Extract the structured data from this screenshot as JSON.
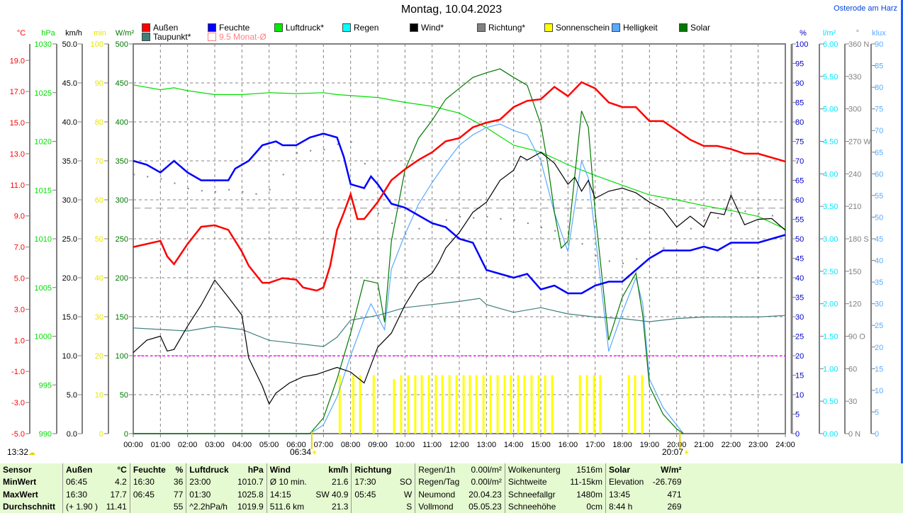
{
  "header": {
    "title": "Montag, 10.04.2023",
    "station": "Osterode am Harz"
  },
  "legend": [
    {
      "label": "Außen",
      "color": "#ff0000"
    },
    {
      "label": "Feuchte",
      "color": "#0000ff"
    },
    {
      "label": "Luftdruck*",
      "color": "#00ee00"
    },
    {
      "label": "Regen",
      "color": "#00ffff"
    },
    {
      "label": "Wind*",
      "color": "#000000"
    },
    {
      "label": "Richtung*",
      "color": "#808080"
    },
    {
      "label": "Sonnenschein",
      "color": "#ffff00"
    },
    {
      "label": "Helligkeit",
      "color": "#5aaaff"
    },
    {
      "label": "Solar",
      "color": "#007700"
    },
    {
      "label": "Taupunkt*",
      "color": "#3f7f7a"
    },
    {
      "label": "9.5 Monat-Ø",
      "color": "#ff8080"
    }
  ],
  "markers": {
    "now": "13:32",
    "sunrise": "06:34",
    "sunset": "20:07"
  },
  "chart_data": {
    "type": "line",
    "title": "Montag, 10.04.2023",
    "x_unit": "hour",
    "xlim": [
      0,
      24
    ],
    "x_ticks": [
      "00:00",
      "01:00",
      "02:00",
      "03:00",
      "04:00",
      "05:00",
      "06:00",
      "07:00",
      "08:00",
      "09:00",
      "10:00",
      "11:00",
      "12:00",
      "13:00",
      "14:00",
      "15:00",
      "16:00",
      "17:00",
      "18:00",
      "19:00",
      "20:00",
      "21:00",
      "22:00",
      "23:00",
      "24:00"
    ],
    "axes": {
      "temp": {
        "unit": "°C",
        "ylim": [
          -5,
          20.06
        ],
        "color": "#ff0000",
        "ticks": [
          "19.0",
          "17.0",
          "15.0",
          "13.0",
          "11.0",
          "9.0",
          "7.0",
          "5.0",
          "3.0",
          "1.0",
          "-1.0",
          "-3.0",
          "-5.0"
        ]
      },
      "press": {
        "unit": "hPa",
        "ylim": [
          990,
          1030
        ],
        "color": "#00dd00",
        "ticks": [
          "1030",
          "1025",
          "1020",
          "1015",
          "1010",
          "1005",
          "1000",
          "995",
          "990"
        ]
      },
      "wind": {
        "unit": "km/h",
        "ylim": [
          0,
          50
        ],
        "color": "#000000",
        "ticks": [
          "50.0",
          "45.0",
          "40.0",
          "35.0",
          "30.0",
          "25.0",
          "20.0",
          "15.0",
          "10.0",
          "5.0",
          "0.0"
        ]
      },
      "sun": {
        "unit": "min",
        "ylim": [
          0,
          100
        ],
        "color": "#e6e600",
        "ticks": [
          "100",
          "90",
          "80",
          "70",
          "60",
          "50",
          "40",
          "30",
          "20",
          "10",
          "0"
        ]
      },
      "solar": {
        "unit": "W/m²",
        "ylim": [
          0,
          500
        ],
        "color": "#007700",
        "ticks": [
          "500",
          "450",
          "400",
          "350",
          "300",
          "250",
          "200",
          "150",
          "100",
          "50",
          "0"
        ]
      },
      "hum": {
        "unit": "%",
        "ylim": [
          0,
          100
        ],
        "color": "#0000cc",
        "ticks": [
          "100",
          "95",
          "90",
          "85",
          "80",
          "75",
          "70",
          "65",
          "60",
          "55",
          "50",
          "45",
          "40",
          "35",
          "30",
          "25",
          "20",
          "15",
          "10",
          "5",
          "0"
        ]
      },
      "rain": {
        "unit": "l/m²",
        "ylim": [
          0,
          6
        ],
        "color": "#00e5ff",
        "ticks": [
          "6.00",
          "5.50",
          "5.00",
          "4.50",
          "4.00",
          "3.50",
          "3.00",
          "2.50",
          "2.00",
          "1.50",
          "1.00",
          "0.50",
          "0.00"
        ]
      },
      "dir": {
        "unit": "°",
        "ylim": [
          0,
          360
        ],
        "color": "#808080",
        "ticks": [
          "360 N",
          "330",
          "300",
          "270 W",
          "240",
          "210",
          "180 S",
          "150",
          "120",
          "90 O",
          "60",
          "30",
          "0 N"
        ]
      },
      "lux": {
        "unit": "klux",
        "ylim": [
          0,
          90
        ],
        "color": "#5aaaff",
        "ticks": [
          "90",
          "85",
          "80",
          "75",
          "70",
          "65",
          "60",
          "55",
          "50",
          "45",
          "40",
          "35",
          "30",
          "25",
          "20",
          "15",
          "10",
          "5",
          "0"
        ]
      }
    },
    "reference_lines": [
      {
        "name": "9.5 Monat-Ø",
        "axis": "temp",
        "value": 9.5,
        "color": "#909090"
      },
      {
        "name": "0 °C",
        "axis": "temp",
        "value": 0,
        "color": "#ff00ff"
      }
    ],
    "series": [
      {
        "name": "Taupunkt*",
        "axis": "temp",
        "color": "#3f7f7a",
        "x": [
          0,
          1,
          2,
          3,
          4,
          5,
          6,
          7,
          7.5,
          8,
          9,
          10,
          11,
          12,
          12.75,
          13,
          14,
          15,
          16,
          17,
          18,
          19,
          20,
          21,
          22,
          23,
          24
        ],
        "y": [
          1.8,
          1.7,
          1.6,
          1.9,
          1.7,
          1.0,
          0.8,
          0.6,
          1.2,
          2.3,
          2.6,
          3.1,
          3.3,
          3.5,
          3.7,
          3.3,
          2.8,
          3.1,
          2.7,
          2.5,
          2.4,
          2.2,
          2.4,
          2.5,
          2.5,
          2.5,
          2.6
        ]
      },
      {
        "name": "Luftdruck*",
        "axis": "press",
        "color": "#00dd00",
        "x": [
          0,
          1,
          1.5,
          2,
          3,
          4,
          5,
          6,
          7,
          7.5,
          8,
          9,
          10,
          11,
          12,
          13,
          14,
          15,
          16,
          17,
          18,
          19,
          20,
          21,
          22,
          23,
          24
        ],
        "y": [
          1025.8,
          1025.3,
          1025.5,
          1025.2,
          1024.8,
          1024.8,
          1025.0,
          1024.9,
          1025.0,
          1024.8,
          1024.7,
          1024.5,
          1024.0,
          1023.6,
          1022.9,
          1021.4,
          1019.6,
          1018.9,
          1017.6,
          1016.5,
          1015.5,
          1014.5,
          1014.0,
          1013.4,
          1012.9,
          1012.3,
          1011.0
        ]
      },
      {
        "name": "Helligkeit",
        "axis": "lux",
        "color": "#5aaaff",
        "x": [
          0,
          6.5,
          7,
          7.5,
          8,
          8.5,
          8.75,
          9.25,
          9.5,
          10,
          10.5,
          11,
          11.5,
          12,
          12.5,
          13,
          13.5,
          14,
          14.5,
          15,
          15.5,
          16,
          16.5,
          16.75,
          17,
          17.5,
          18,
          18.5,
          18.75,
          19,
          19.5,
          20,
          20.25
        ],
        "y": [
          0,
          0,
          2,
          8.5,
          18,
          26.5,
          30,
          24,
          38,
          46,
          53,
          58,
          62.5,
          66.6,
          69,
          70.7,
          71.5,
          70,
          69,
          63,
          51,
          42,
          63,
          59,
          46,
          19,
          28,
          36,
          30,
          12.6,
          6,
          2,
          0
        ]
      },
      {
        "name": "Solar",
        "axis": "solar",
        "color": "#007700",
        "x": [
          0,
          6.5,
          7,
          7.5,
          8,
          8.5,
          9,
          9.25,
          9.5,
          10,
          10.5,
          11,
          11.5,
          12,
          12.5,
          13,
          13.5,
          14,
          14.5,
          15,
          15.25,
          15.5,
          15.75,
          16,
          16.5,
          16.75,
          17,
          17.5,
          18,
          18.5,
          18.75,
          19,
          19.5,
          20,
          20.25
        ],
        "y": [
          0,
          0,
          20,
          70,
          129,
          197,
          193,
          143,
          247,
          338,
          379,
          402,
          429,
          443,
          457,
          463,
          468,
          457,
          447,
          397,
          347,
          284,
          238,
          247,
          414,
          393,
          284,
          120,
          175,
          206,
          152,
          61,
          25,
          6,
          0
        ]
      },
      {
        "name": "Wind*",
        "axis": "wind",
        "color": "#000000",
        "x": [
          0,
          0.5,
          1,
          1.25,
          1.5,
          2,
          2.5,
          3,
          3.5,
          4,
          4.25,
          4.75,
          5,
          5.25,
          5.75,
          6.25,
          6.75,
          7,
          7.5,
          8,
          8.5,
          9,
          9.5,
          10,
          10.5,
          11,
          11.25,
          11.5,
          12,
          12.5,
          13,
          13.5,
          14,
          14.25,
          14.5,
          15,
          15.5,
          16,
          16.25,
          16.5,
          16.75,
          17,
          17.5,
          18,
          18.5,
          19,
          19.5,
          20,
          20.5,
          21,
          21.25,
          21.75,
          22,
          22.5,
          23,
          23.5,
          24
        ],
        "y": [
          10.4,
          12,
          12.5,
          10.6,
          10.8,
          13.8,
          16.5,
          19.7,
          17.5,
          15.2,
          9.7,
          6.1,
          3.8,
          5.2,
          6.5,
          7.3,
          7.6,
          7.9,
          8.5,
          7.9,
          6.5,
          11.1,
          12.9,
          16.5,
          19.3,
          20.6,
          22,
          23.8,
          25.8,
          28.4,
          29.7,
          32.5,
          33.8,
          35.6,
          35.1,
          36.1,
          34.7,
          32,
          32.9,
          31.1,
          32.5,
          30.2,
          31.1,
          31.5,
          30.9,
          29.7,
          28.8,
          26.5,
          27.9,
          26.5,
          28.4,
          28.1,
          30.6,
          26.8,
          27.5,
          27.6,
          26.1
        ]
      },
      {
        "name": "Feuchte",
        "axis": "hum",
        "color": "#0000ff",
        "x": [
          0,
          0.5,
          1,
          1.5,
          2,
          2.5,
          3.5,
          3.75,
          4.25,
          4.75,
          5.25,
          5.5,
          6,
          6.5,
          7,
          7.5,
          7.75,
          8,
          8.5,
          8.75,
          9,
          9.5,
          10,
          10.5,
          11,
          11.5,
          12,
          12.5,
          13,
          13.5,
          14,
          14.5,
          15,
          15.5,
          16,
          16.5,
          17,
          17.5,
          18,
          18.5,
          19,
          19.5,
          20,
          20.5,
          21,
          21.5,
          22,
          23,
          24
        ],
        "y": [
          70,
          69,
          67,
          70,
          67,
          65,
          65,
          68,
          70,
          74,
          75,
          74,
          74,
          76,
          77,
          76,
          71,
          64,
          63,
          66,
          64,
          59,
          58,
          56,
          54,
          53,
          50,
          49,
          42,
          41,
          40,
          41,
          37,
          38,
          36,
          36,
          38,
          39,
          39,
          42,
          45,
          47,
          47,
          47,
          48,
          47,
          49,
          49,
          51
        ]
      },
      {
        "name": "Außen",
        "axis": "temp",
        "color": "#ff0000",
        "x": [
          0,
          1,
          1.25,
          1.5,
          2,
          2.5,
          3,
          3.5,
          4,
          4.25,
          4.75,
          5,
          5.5,
          6,
          6.25,
          6.75,
          7,
          7.25,
          7.5,
          7.75,
          8,
          8.25,
          8.5,
          9,
          9.5,
          10,
          10.5,
          11,
          11.5,
          12,
          12.5,
          13,
          13.5,
          14,
          14.5,
          15,
          15.5,
          15.75,
          16,
          16.5,
          17,
          17.5,
          18,
          18.5,
          19,
          19.5,
          20,
          20.5,
          21,
          21.5,
          22,
          22.5,
          23,
          24
        ],
        "y": [
          7.0,
          7.4,
          6.4,
          5.9,
          7.2,
          8.3,
          8.4,
          8.1,
          6.7,
          5.8,
          4.7,
          4.7,
          5.0,
          4.9,
          4.4,
          4.2,
          4.4,
          5.8,
          8.1,
          9.2,
          10.4,
          8.8,
          8.8,
          9.9,
          11.3,
          12.0,
          12.6,
          13.1,
          13.8,
          14.0,
          14.7,
          15.0,
          15.2,
          16.0,
          16.4,
          16.5,
          17.3,
          17.0,
          16.7,
          17.6,
          17.2,
          16.3,
          16.0,
          16.0,
          15.1,
          15.1,
          14.5,
          13.9,
          13.5,
          13.5,
          13.3,
          13.0,
          13.0,
          12.5
        ]
      }
    ],
    "direction_points": {
      "name": "Richtung*",
      "axis": "dir",
      "x": [
        0,
        0.5,
        1,
        1.5,
        2,
        2.5,
        3,
        3.5,
        4,
        4.5,
        5,
        5.5,
        6,
        6.5,
        7,
        7.5,
        8,
        8.5,
        9,
        9.5,
        10,
        10.5,
        11,
        11.5,
        12,
        12.5,
        13,
        13.5,
        14,
        14.5,
        15,
        15.5,
        16,
        16.5,
        17,
        17.5,
        18,
        18.5,
        19,
        19.5,
        20,
        20.5,
        21,
        21.5,
        22,
        22.5,
        23,
        23.5
      ],
      "y": [
        240,
        238,
        236,
        232,
        227,
        225,
        224,
        226,
        224,
        222,
        226,
        240,
        260,
        262,
        263,
        268,
        270,
        250,
        204,
        195,
        185,
        190,
        194,
        198,
        201,
        200,
        201,
        199,
        198,
        195,
        191,
        188,
        185,
        176,
        165,
        160,
        158,
        162,
        168,
        172,
        178,
        190,
        198,
        200,
        204,
        206,
        204,
        202
      ]
    },
    "sunshine_bars": {
      "name": "Sonnenschein",
      "axis": "sun",
      "x": [
        7.6,
        8.1,
        8.35,
        8.85,
        9.6,
        9.86,
        10.12,
        10.38,
        10.62,
        10.88,
        11.14,
        11.38,
        11.64,
        11.9,
        12.16,
        12.39,
        12.63,
        12.89,
        13.15,
        13.41,
        13.67,
        13.9,
        14.17,
        14.4,
        14.66,
        14.92,
        15.16,
        15.42,
        16.44,
        16.7,
        16.96,
        17.19,
        18.24,
        18.47,
        18.73
      ],
      "y": [
        15,
        15,
        15,
        15,
        14,
        15,
        15,
        15,
        15,
        15,
        15,
        15,
        15,
        15,
        15,
        15,
        15,
        15,
        15,
        15,
        15,
        15,
        15,
        15,
        15,
        15,
        15,
        15,
        15,
        15,
        15,
        15,
        15,
        15,
        15
      ]
    }
  },
  "stats": {
    "headers": {
      "sensor": "Sensor",
      "aussen": "Außen",
      "aussen_unit": "°C",
      "feuchte": "Feuchte",
      "feuchte_unit": "%",
      "luftdruck": "Luftdruck",
      "luftdruck_unit": "hPa",
      "wind": "Wind",
      "wind_unit": "km/h",
      "richtung": "Richtung",
      "solar": "Solar",
      "solar_unit": "W/m²"
    },
    "rows": [
      {
        "label": "MinWert",
        "aussen_t": "06:45",
        "aussen_v": "4.2",
        "feuchte_t": "16:30",
        "feuchte_v": "36",
        "druck_t": "23:00",
        "druck_v": "1010.7",
        "wind_t": "Ø 10 min.",
        "wind_v": "21.6",
        "richt_t": "17:30",
        "richt_v": "SO",
        "extra1_l": "Regen/Tag",
        "extra1_v": "0.00l/m²",
        "extra2_l": "Sichtweite",
        "extra2_v": "11-15km",
        "solar_l": "Elevation",
        "solar_v": "-26.769"
      },
      {
        "label": "MaxWert",
        "aussen_t": "16:30",
        "aussen_v": "17.7",
        "feuchte_t": "06:45",
        "feuchte_v": "77",
        "druck_t": "01:30",
        "druck_v": "1025.8",
        "wind_t": "14:15",
        "wind_v": "SW 40.9",
        "richt_t": "05:45",
        "richt_v": "W",
        "extra1_l": "Neumond",
        "extra1_v": "20.04.23",
        "extra2_l": "Schneefallgr",
        "extra2_v": "1480m",
        "solar_l": "13:45",
        "solar_v": "471"
      },
      {
        "label": "Durchschnitt",
        "aussen_t": "(+ 1.90 )",
        "aussen_v": "11.41",
        "feuchte_t": "",
        "feuchte_v": "55",
        "druck_t": "^2.2hPa/h",
        "druck_v": "1019.9",
        "wind_t": "511.6 km",
        "wind_v": "21.3",
        "richt_t": "",
        "richt_v": "S",
        "extra1_l": "Vollmond",
        "extra1_v": "05.05.23",
        "extra2_l": "Schneehöhe",
        "extra2_v": "0cm",
        "solar_l": "8:44 h",
        "solar_v": "269"
      }
    ],
    "header_extra": {
      "extra1_l": "Regen/1h",
      "extra1_v": "0.00l/m²",
      "extra2_l": "Wolkenunterg",
      "extra2_v": "1516m"
    }
  }
}
